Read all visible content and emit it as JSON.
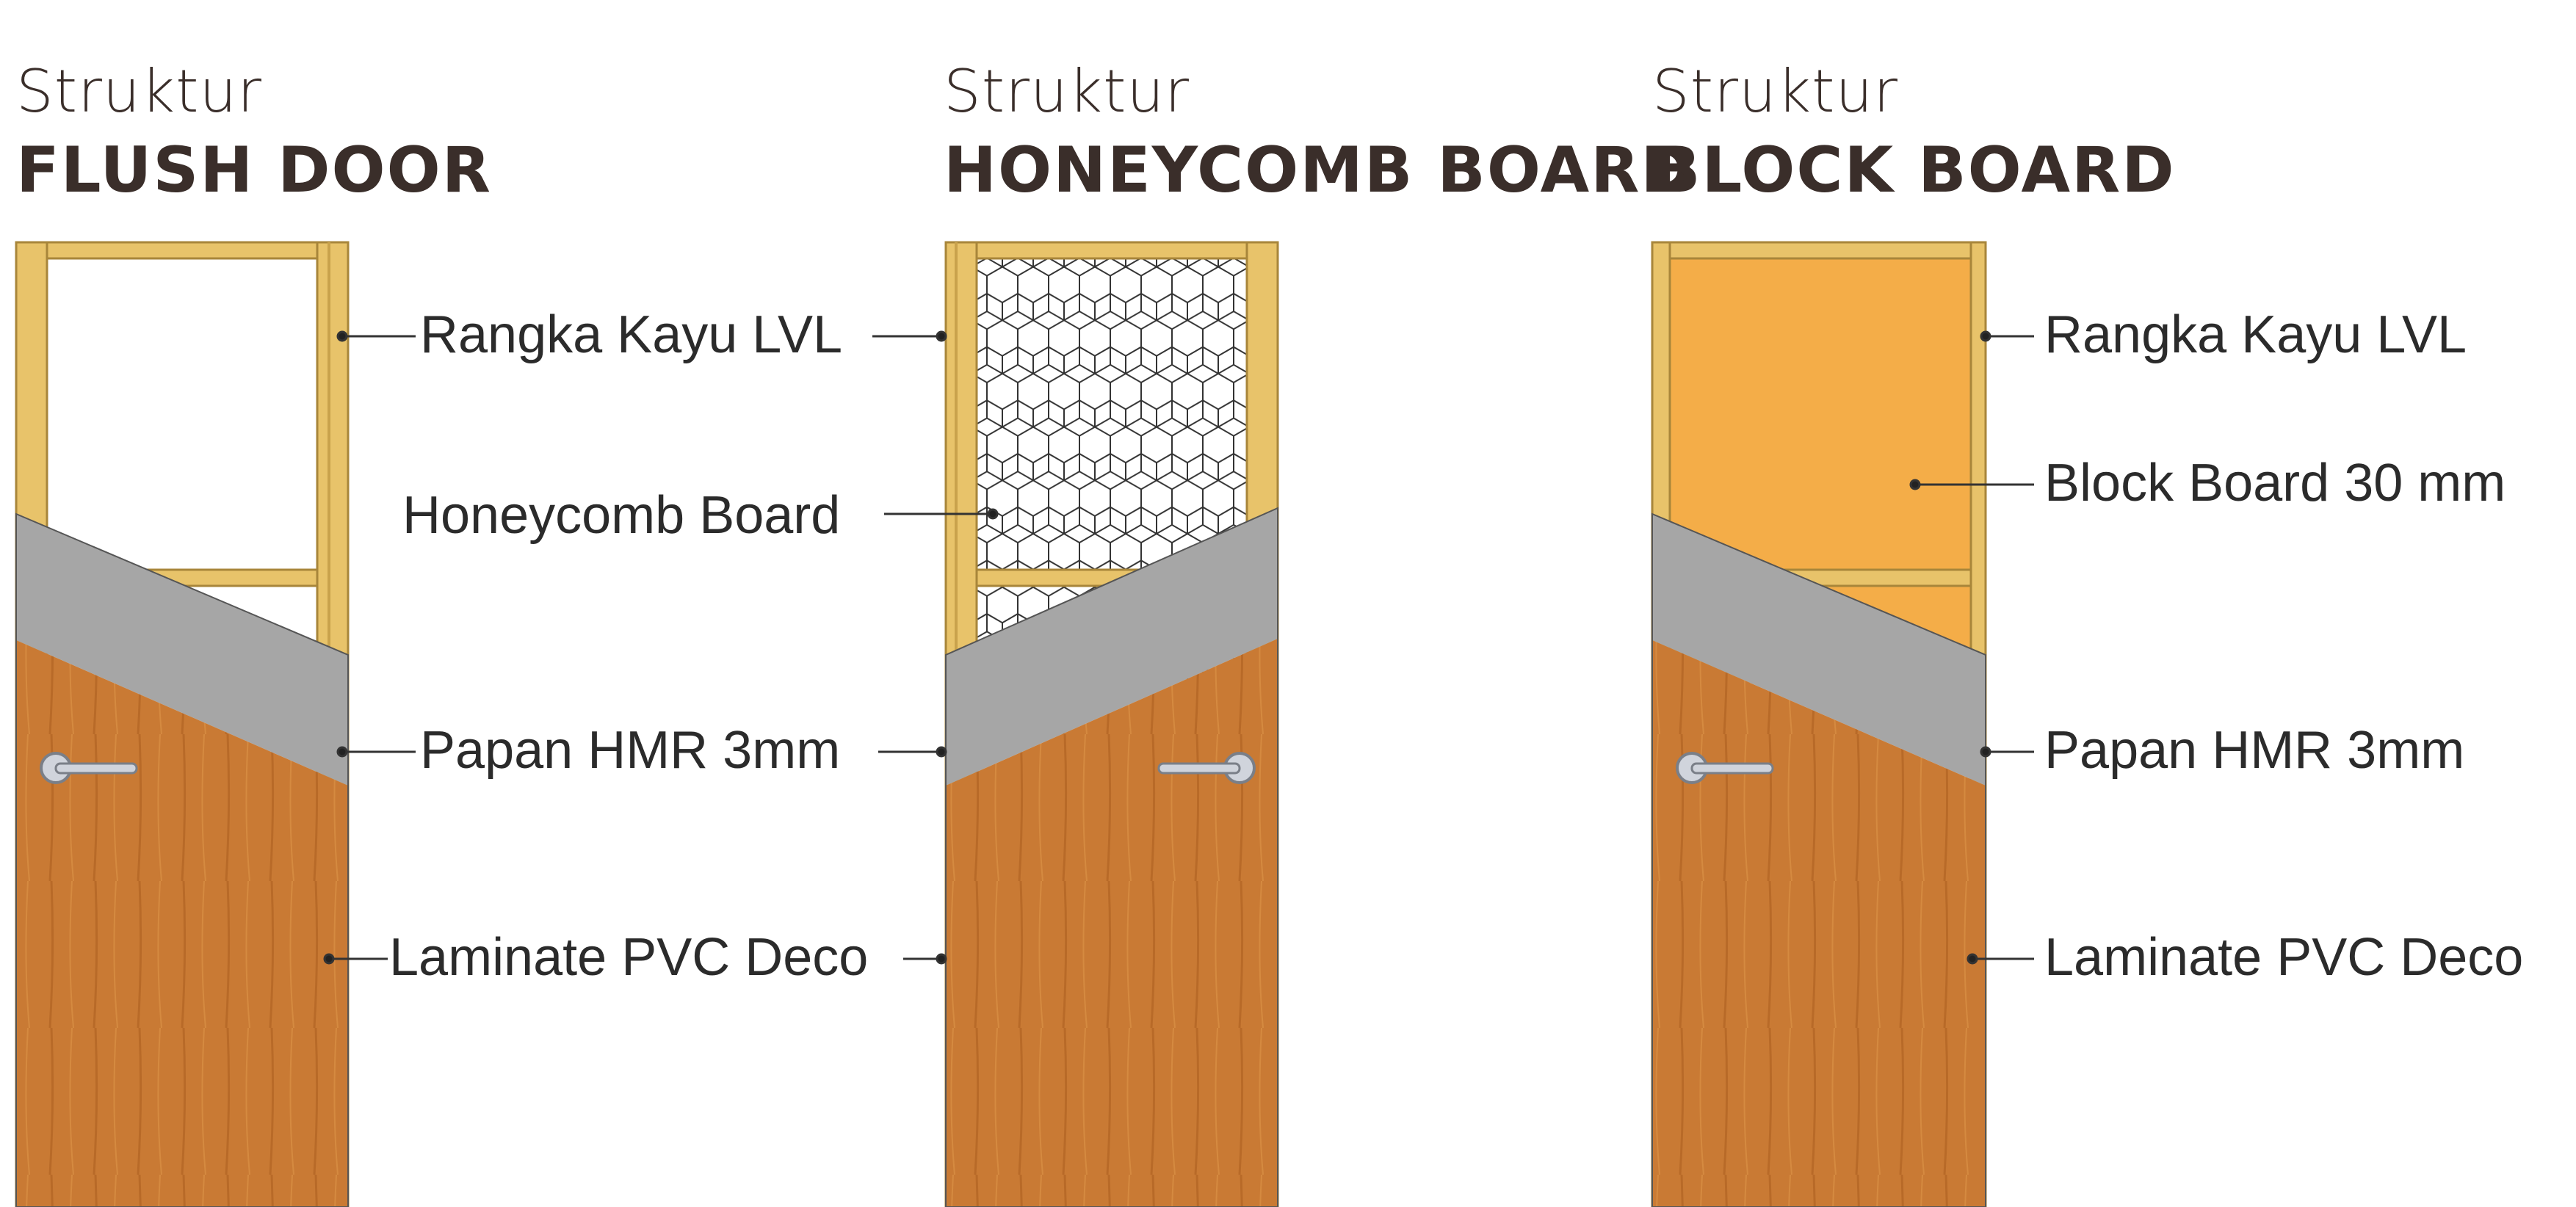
{
  "panels": [
    {
      "subtitle": "Struktur",
      "title": "FLUSH DOOR",
      "labels": [
        "Rangka Kayu LVL",
        "Papan HMR 3mm",
        "Laminate PVC Deco"
      ]
    },
    {
      "subtitle": "Struktur",
      "title": "HONEYCOMB BOARD",
      "labels": [
        "Rangka Kayu LVL",
        "Honeycomb Board",
        "Papan HMR 3mm",
        "Laminate PVC Deco"
      ]
    },
    {
      "subtitle": "Struktur",
      "title": "BLOCK BOARD",
      "labels": [
        "Rangka Kayu LVL",
        "Block Board 30 mm",
        "Papan HMR 3mm",
        "Laminate PVC Deco"
      ]
    }
  ],
  "colors": {
    "frame": "#e8c36a",
    "frame_edge": "#a8863a",
    "hmr": "#a6a6a6",
    "laminate": "#c97a34",
    "block": "#f4ad48",
    "text": "#3a2e2a"
  }
}
